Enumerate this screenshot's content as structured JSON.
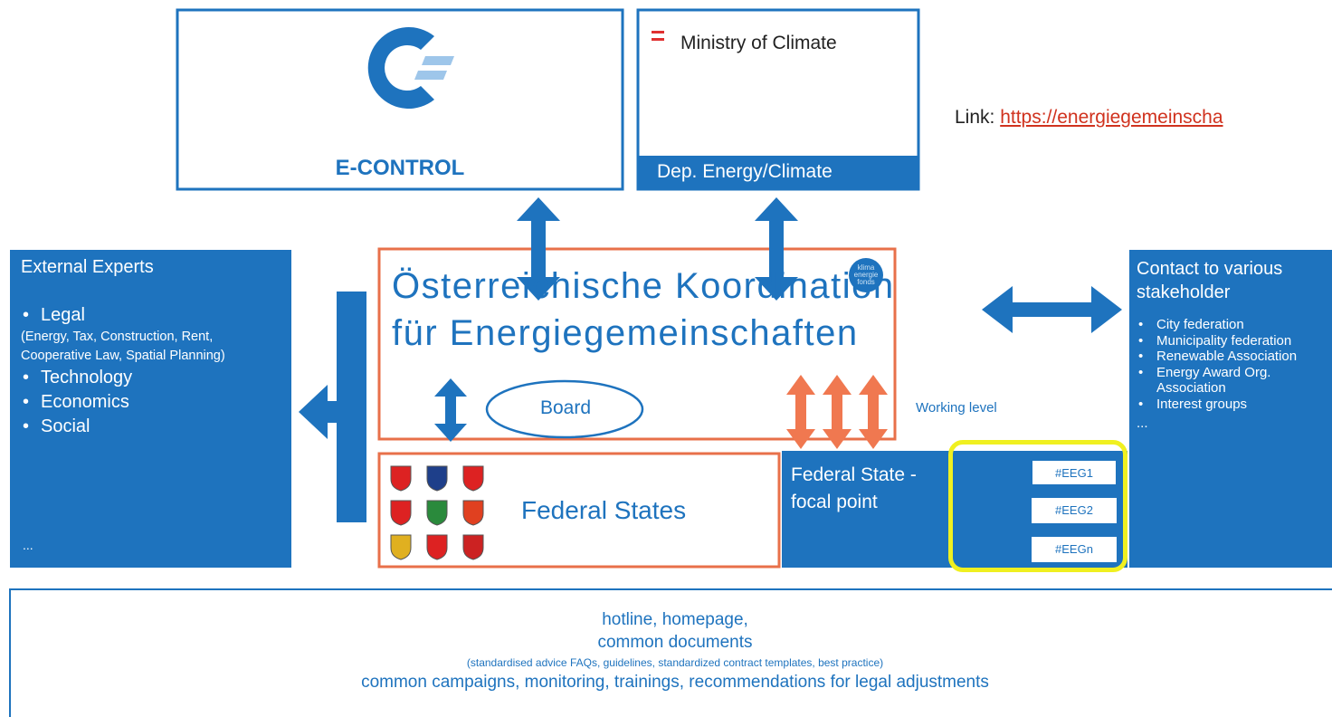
{
  "econtrol": {
    "label": "E-CONTROL"
  },
  "ministry": {
    "title": "Ministry of Climate",
    "department": "Dep. Energy/Climate"
  },
  "link": {
    "prefix": "Link:",
    "url": "https://energiegemeinscha"
  },
  "coordination": {
    "lines": [
      "Österreichische Koordination",
      "für Energiegemeinschaften"
    ],
    "logo": [
      "klima",
      "energie",
      "fonds"
    ]
  },
  "external_experts": {
    "title": "External Experts",
    "items": [
      {
        "label": "Legal",
        "note": "(Energy, Tax, Construction, Rent, Cooperative Law, Spatial Planning)"
      },
      {
        "label": "Technology"
      },
      {
        "label": "Economics"
      },
      {
        "label": "Social"
      }
    ],
    "more": "..."
  },
  "stakeholders": {
    "title": "Contact to various stakeholder",
    "items": [
      "City federation",
      "Municipality federation",
      "Renewable Association",
      "Energy Award Org. Association",
      "Interest groups"
    ],
    "more": "..."
  },
  "board": "Board",
  "working_level": "Working level",
  "federal_states": "Federal States",
  "focal_point": "Federal State - focal point",
  "eeg": [
    "#EEG1",
    "#EEG2",
    "#EEGn"
  ],
  "services": {
    "lines": [
      "hotline, homepage,",
      "common documents",
      "(standardised advice FAQs, guidelines, standardized contract templates, best practice)",
      "common campaigns, monitoring, trainings, recommendations for legal adjustments"
    ]
  }
}
